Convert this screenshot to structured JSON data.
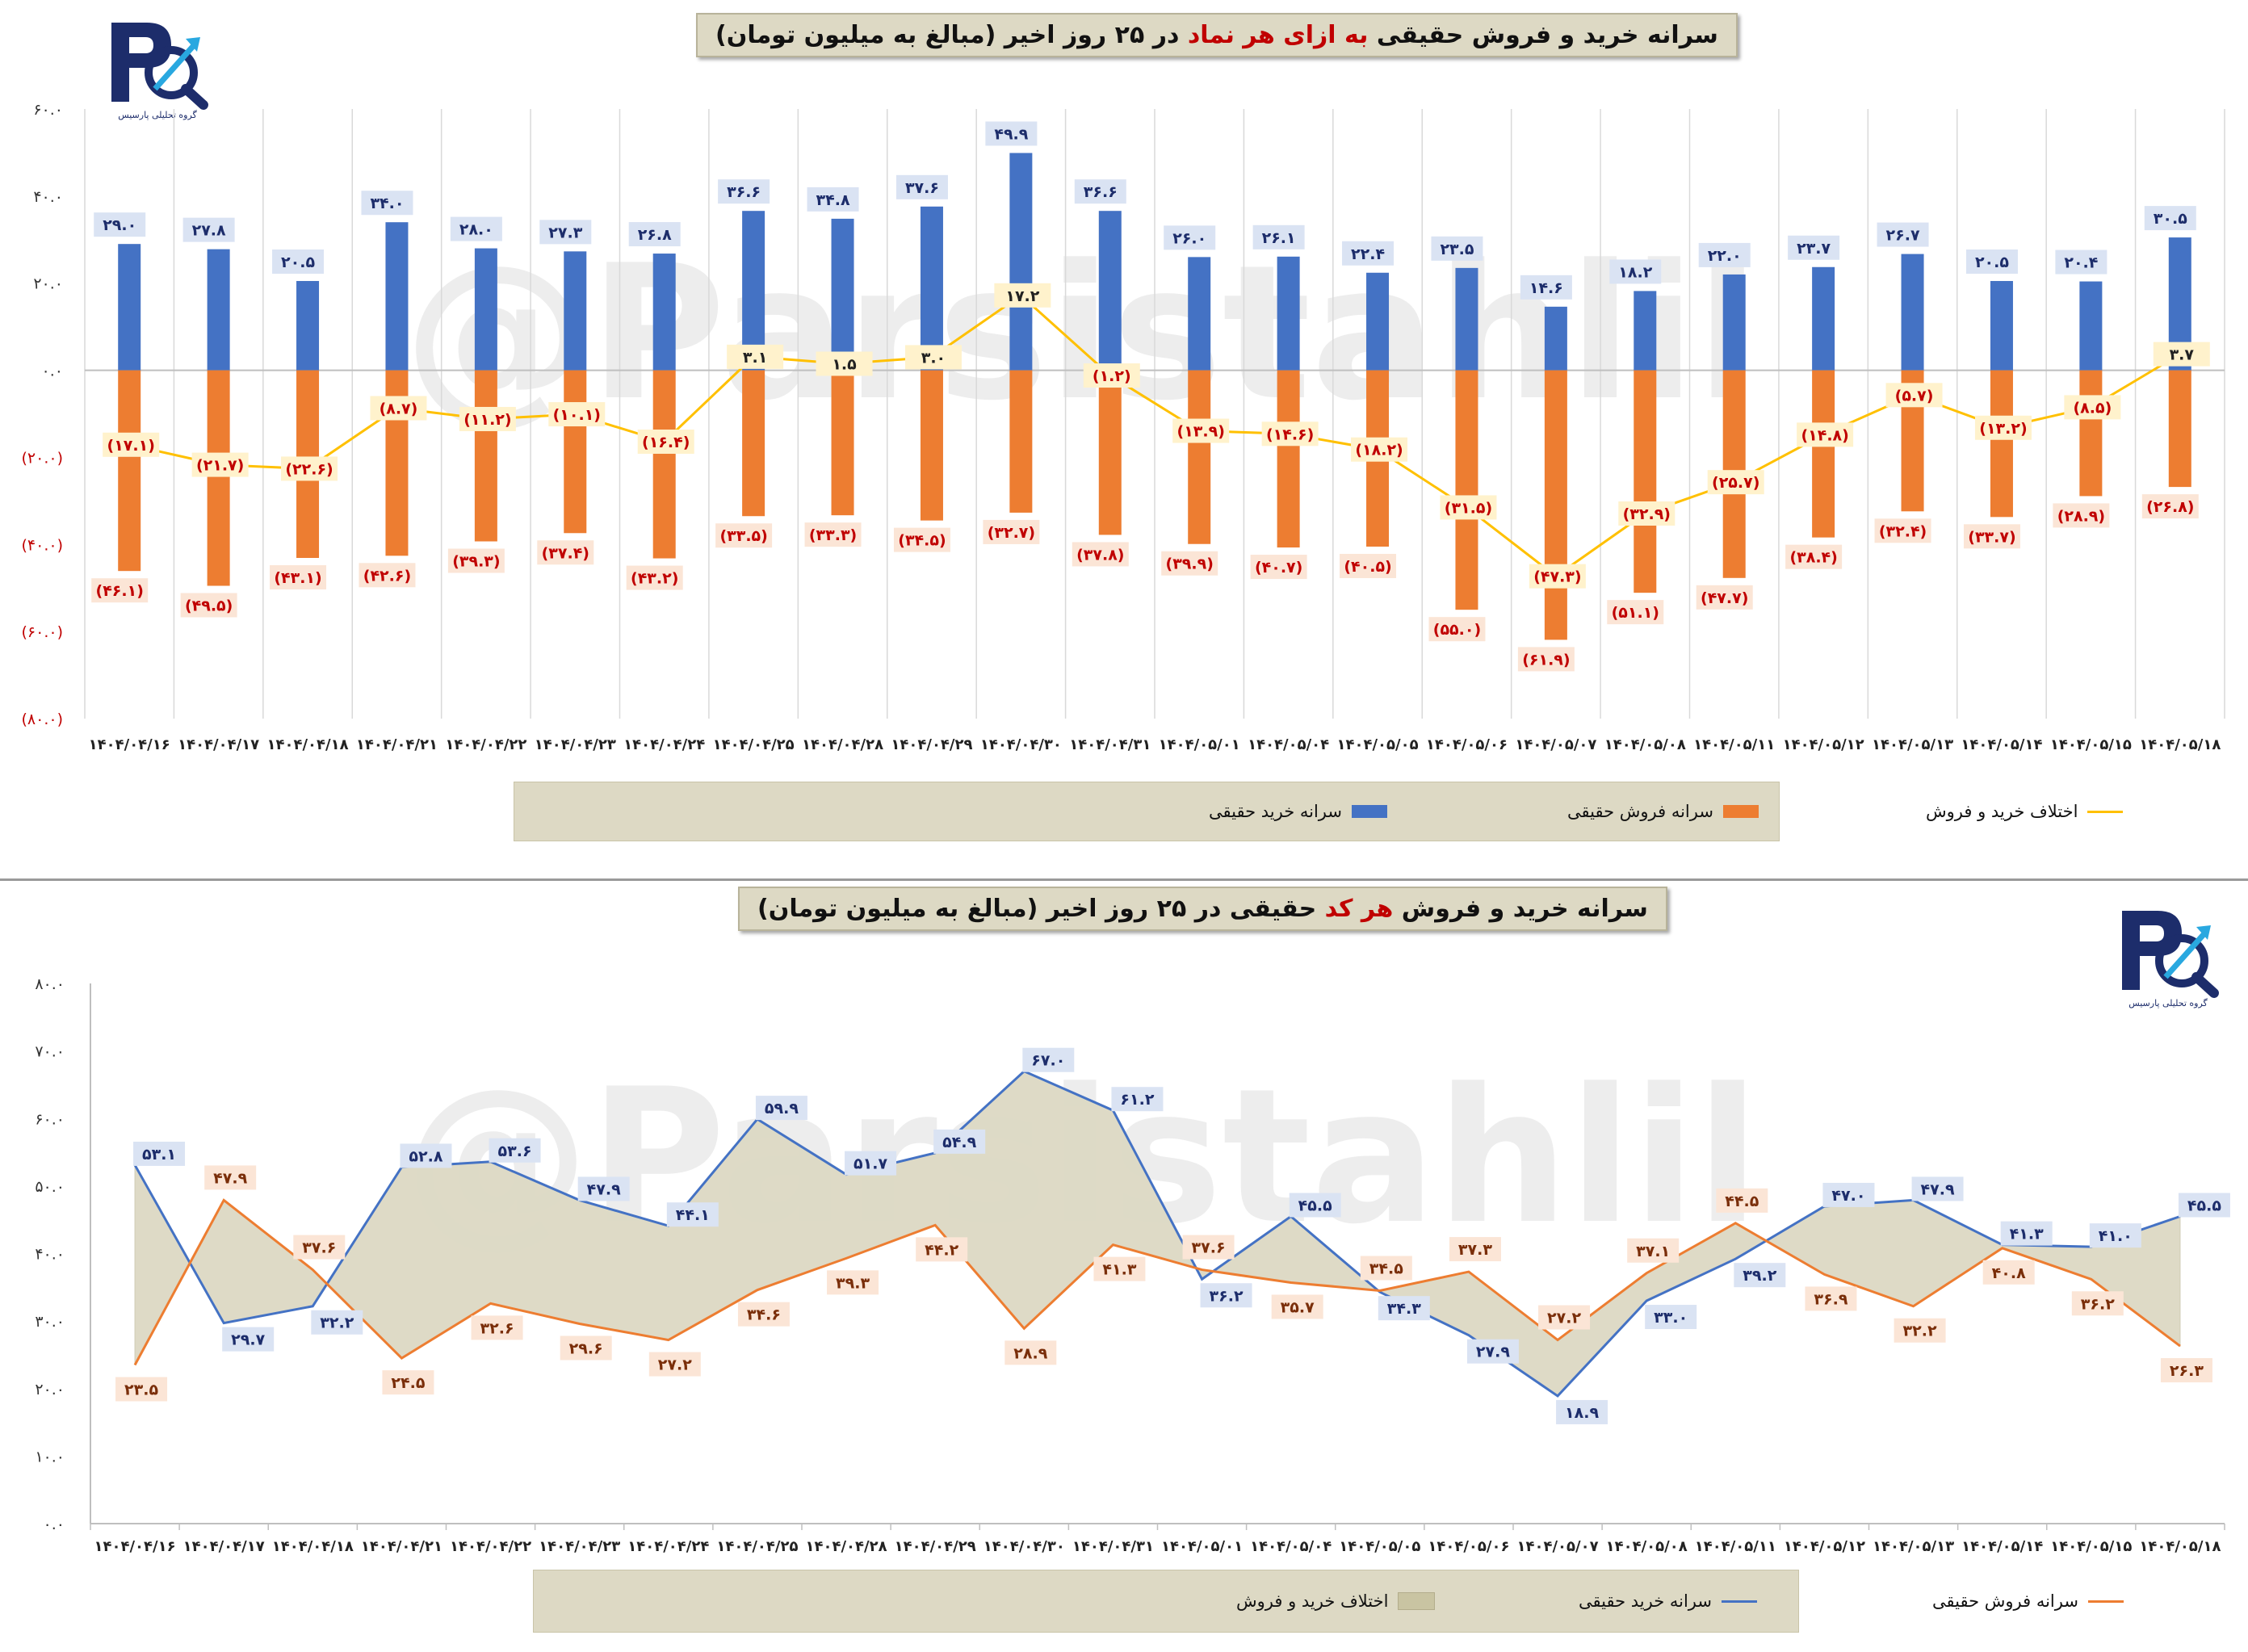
{
  "dates": [
    "۱۴۰۴/۰۴/۱۶",
    "۱۴۰۴/۰۴/۱۷",
    "۱۴۰۴/۰۴/۱۸",
    "۱۴۰۴/۰۴/۲۱",
    "۱۴۰۴/۰۴/۲۲",
    "۱۴۰۴/۰۴/۲۳",
    "۱۴۰۴/۰۴/۲۴",
    "۱۴۰۴/۰۴/۲۵",
    "۱۴۰۴/۰۴/۲۸",
    "۱۴۰۴/۰۴/۲۹",
    "۱۴۰۴/۰۴/۳۰",
    "۱۴۰۴/۰۴/۳۱",
    "۱۴۰۴/۰۵/۰۱",
    "۱۴۰۴/۰۵/۰۴",
    "۱۴۰۴/۰۵/۰۵",
    "۱۴۰۴/۰۵/۰۶",
    "۱۴۰۴/۰۵/۰۷",
    "۱۴۰۴/۰۵/۰۸",
    "۱۴۰۴/۰۵/۱۱",
    "۱۴۰۴/۰۵/۱۲",
    "۱۴۰۴/۰۵/۱۳",
    "۱۴۰۴/۰۵/۱۴",
    "۱۴۰۴/۰۵/۱۵",
    "۱۴۰۴/۰۵/۱۸"
  ],
  "logo_text": "گروه تحلیلی پارسیس",
  "watermark": "@Parsistahlil",
  "top": {
    "title_part1": "سرانه خرید و فروش حقیقی ",
    "title_highlight": "به ازای هر نماد",
    "title_part2": " در ۲۵ روز اخیر (مبالغ به میلیون تومان)",
    "legend": {
      "buy": "سرانه خرید حقیقی",
      "sell": "سرانه فروش حقیقی",
      "diff": "اختلاف خرید و فروش"
    },
    "colors": {
      "buy": "#4472c4",
      "sell": "#ed7d31",
      "diff": "#ffc000",
      "buy_label_bg": "#dae3f3",
      "sell_label_bg": "#fbe5d6",
      "diff_label_bg": "#fff2cc",
      "neg_text": "#c00000"
    }
  },
  "bottom": {
    "title_part1": "سرانه خرید و فروش ",
    "title_highlight": "هر کد",
    "title_part2": " حقیقی در ۲۵ روز اخیر (مبالغ به میلیون تومان)",
    "legend": {
      "diff": "اختلاف خرید و فروش",
      "buy": "سرانه خرید حقیقی",
      "sell": "سرانه فروش حقیقی"
    },
    "colors": {
      "buy": "#4472c4",
      "sell": "#ed7d31",
      "fill": "#ddd9c4",
      "buy_label_bg": "#dae3f3",
      "sell_label_bg": "#fbe5d6"
    }
  },
  "chart_data": [
    {
      "type": "bar",
      "title": "سرانه خرید و فروش حقیقی به ازای هر نماد در ۲۵ روز اخیر (مبالغ به میلیون تومان)",
      "ylim": [
        -80,
        60
      ],
      "yticks": [
        60,
        40,
        20,
        0,
        -20,
        -40,
        -60,
        -80
      ],
      "ytick_labels": [
        "۶۰.۰",
        "۴۰.۰",
        "۲۰.۰",
        "۰.۰",
        "(۲۰.۰)",
        "(۴۰.۰)",
        "(۶۰.۰)",
        "(۸۰.۰)"
      ],
      "legend_position": "bottom",
      "series": [
        {
          "name": "سرانه خرید حقیقی",
          "type": "bar",
          "values": [
            29.0,
            27.8,
            20.5,
            34.0,
            28.0,
            27.3,
            26.8,
            36.6,
            34.8,
            37.6,
            49.9,
            36.6,
            26.0,
            26.1,
            22.4,
            23.5,
            14.6,
            18.2,
            22.0,
            23.7,
            26.7,
            20.5,
            20.4,
            30.5
          ]
        },
        {
          "name": "سرانه فروش حقیقی",
          "type": "bar",
          "values": [
            -46.1,
            -49.5,
            -43.1,
            -42.6,
            -39.3,
            -37.4,
            -43.2,
            -33.5,
            -33.3,
            -34.5,
            -32.7,
            -37.8,
            -39.9,
            -40.7,
            -40.5,
            -55.0,
            -61.9,
            -51.1,
            -47.7,
            -38.4,
            -32.4,
            -33.7,
            -28.9,
            -26.8
          ]
        },
        {
          "name": "اختلاف خرید و فروش",
          "type": "line",
          "values": [
            -17.1,
            -21.7,
            -22.6,
            -8.7,
            -11.2,
            -10.1,
            -16.4,
            3.1,
            1.5,
            3.0,
            17.2,
            -1.2,
            -13.9,
            -14.6,
            -18.2,
            -31.5,
            -47.3,
            -32.9,
            -25.7,
            -14.8,
            -5.7,
            -13.2,
            -8.5,
            3.7
          ]
        }
      ]
    },
    {
      "type": "area",
      "title": "سرانه خرید و فروش هر کد حقیقی در ۲۵ روز اخیر (مبالغ به میلیون تومان)",
      "ylim": [
        0,
        80
      ],
      "yticks": [
        80,
        70,
        60,
        50,
        40,
        30,
        20,
        10,
        0
      ],
      "ytick_labels": [
        "۸۰.۰",
        "۷۰.۰",
        "۶۰.۰",
        "۵۰.۰",
        "۴۰.۰",
        "۳۰.۰",
        "۲۰.۰",
        "۱۰.۰",
        "۰.۰"
      ],
      "legend_position": "bottom",
      "series": [
        {
          "name": "سرانه خرید حقیقی",
          "type": "line",
          "values": [
            53.1,
            29.7,
            32.2,
            52.8,
            53.6,
            47.9,
            44.1,
            59.9,
            51.7,
            54.9,
            67.0,
            61.2,
            36.2,
            45.5,
            34.3,
            27.9,
            18.9,
            33.0,
            39.2,
            47.0,
            47.9,
            41.3,
            41.0,
            45.5
          ]
        },
        {
          "name": "سرانه فروش حقیقی",
          "type": "line",
          "values": [
            23.5,
            47.9,
            37.6,
            24.5,
            32.6,
            29.6,
            27.2,
            34.6,
            39.3,
            44.2,
            28.9,
            41.3,
            37.6,
            35.7,
            34.5,
            37.3,
            27.2,
            37.1,
            44.5,
            36.9,
            32.2,
            40.8,
            36.2,
            26.3
          ]
        },
        {
          "name": "اختلاف خرید و فروش",
          "type": "area",
          "values": [
            29.6,
            -18.2,
            -5.4,
            28.3,
            21.0,
            18.3,
            16.9,
            25.3,
            12.4,
            10.7,
            38.1,
            19.9,
            -1.4,
            9.8,
            -0.2,
            -9.4,
            -8.3,
            -4.1,
            -5.3,
            10.1,
            15.7,
            0.5,
            4.8,
            19.2
          ]
        }
      ]
    }
  ]
}
